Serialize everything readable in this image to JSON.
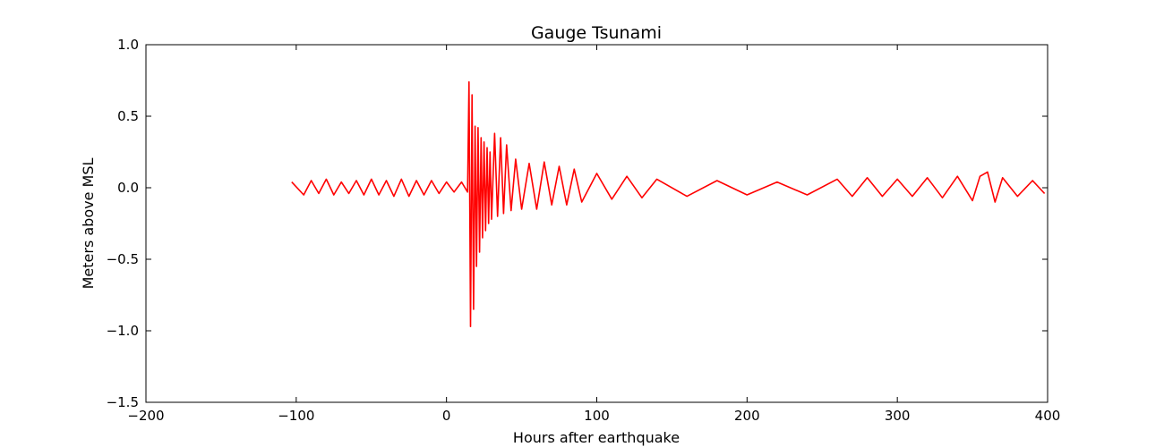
{
  "chart_data": {
    "type": "line",
    "title": "Gauge Tsunami",
    "xlabel": "Hours after earthquake",
    "ylabel": "Meters above MSL",
    "xlim": [
      -200,
      400
    ],
    "ylim": [
      -1.5,
      1.0
    ],
    "xticks": [
      -200,
      -100,
      0,
      100,
      200,
      300,
      400
    ],
    "yticks": [
      -1.5,
      -1.0,
      -0.5,
      0.0,
      0.5,
      1.0
    ],
    "xtick_labels": [
      "−200",
      "−100",
      "0",
      "100",
      "200",
      "300",
      "400"
    ],
    "ytick_labels": [
      "−1.5",
      "−1.0",
      "−0.5",
      "0.0",
      "0.5",
      "1.0"
    ],
    "grid": false,
    "line_color": "#ff0000",
    "series": [
      {
        "x": [
          -103,
          -95,
          -90,
          -85,
          -80,
          -75,
          -70,
          -65,
          -60,
          -55,
          -50,
          -45,
          -40,
          -35,
          -30,
          -25,
          -20,
          -15,
          -10,
          -5,
          0,
          5,
          10,
          14,
          15,
          16,
          17,
          18,
          19,
          20,
          21,
          22,
          23,
          24,
          25,
          26,
          27,
          28,
          29,
          30,
          32,
          34,
          36,
          38,
          40,
          43,
          46,
          50,
          55,
          60,
          65,
          70,
          75,
          80,
          85,
          90,
          100,
          110,
          120,
          130,
          140,
          160,
          180,
          200,
          220,
          240,
          260,
          270,
          280,
          290,
          300,
          310,
          320,
          330,
          340,
          350,
          355,
          360,
          365,
          370,
          380,
          390,
          398
        ],
        "y": [
          0.04,
          -0.05,
          0.05,
          -0.04,
          0.06,
          -0.05,
          0.04,
          -0.04,
          0.05,
          -0.05,
          0.06,
          -0.05,
          0.05,
          -0.06,
          0.06,
          -0.06,
          0.05,
          -0.05,
          0.05,
          -0.04,
          0.04,
          -0.03,
          0.04,
          -0.03,
          0.74,
          -0.97,
          0.65,
          -0.85,
          0.43,
          -0.55,
          0.42,
          -0.45,
          0.35,
          -0.35,
          0.32,
          -0.3,
          0.28,
          -0.25,
          0.25,
          -0.22,
          0.38,
          -0.2,
          0.35,
          -0.18,
          0.3,
          -0.16,
          0.2,
          -0.15,
          0.17,
          -0.15,
          0.18,
          -0.12,
          0.15,
          -0.12,
          0.13,
          -0.1,
          0.1,
          -0.08,
          0.08,
          -0.07,
          0.06,
          -0.06,
          0.05,
          -0.05,
          0.04,
          -0.05,
          0.06,
          -0.06,
          0.07,
          -0.06,
          0.06,
          -0.06,
          0.07,
          -0.07,
          0.08,
          -0.09,
          0.08,
          0.11,
          -0.1,
          0.07,
          -0.06,
          0.05,
          -0.04
        ]
      }
    ]
  }
}
